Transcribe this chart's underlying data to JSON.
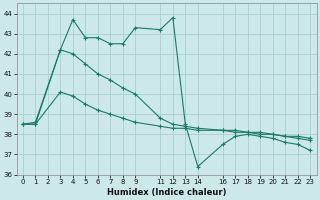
{
  "xlabel": "Humidex (Indice chaleur)",
  "bg_color": "#cce8e8",
  "grid_color": "#aad0d0",
  "line_color": "#1a7a6a",
  "xlim": [
    -0.5,
    23.5
  ],
  "ylim": [
    36,
    44.5
  ],
  "yticks": [
    36,
    37,
    38,
    39,
    40,
    41,
    42,
    43,
    44
  ],
  "xtick_positions": [
    0,
    1,
    2,
    3,
    4,
    5,
    6,
    7,
    8,
    9,
    11,
    12,
    13,
    14,
    16,
    17,
    18,
    19,
    20,
    21,
    22,
    23
  ],
  "xtick_labels": [
    "0",
    "1",
    "2",
    "3",
    "4",
    "5",
    "6",
    "7",
    "8",
    "9",
    "11",
    "12",
    "13",
    "14",
    "16",
    "17",
    "18",
    "19",
    "20",
    "21",
    "22",
    "23"
  ],
  "series1_x": [
    0,
    1,
    3,
    4,
    5,
    6,
    7,
    8,
    9,
    11,
    12,
    13,
    14,
    16,
    17,
    18,
    19,
    20,
    21,
    22,
    23
  ],
  "series1_y": [
    38.5,
    38.6,
    42.2,
    43.7,
    42.8,
    42.8,
    42.5,
    42.5,
    43.3,
    43.2,
    43.8,
    38.5,
    36.4,
    37.5,
    37.9,
    38.0,
    37.9,
    37.8,
    37.6,
    37.5,
    37.2
  ],
  "series2_x": [
    0,
    1,
    3,
    4,
    5,
    6,
    7,
    8,
    9,
    11,
    12,
    13,
    14,
    16,
    17,
    18,
    19,
    20,
    21,
    22,
    23
  ],
  "series2_y": [
    38.5,
    38.5,
    42.2,
    42.0,
    41.5,
    41.0,
    40.7,
    40.3,
    40.0,
    38.8,
    38.5,
    38.4,
    38.3,
    38.2,
    38.2,
    38.1,
    38.1,
    38.0,
    37.9,
    37.8,
    37.7
  ],
  "series3_x": [
    0,
    1,
    3,
    4,
    5,
    6,
    7,
    8,
    9,
    11,
    12,
    13,
    14,
    16,
    17,
    18,
    19,
    20,
    21,
    22,
    23
  ],
  "series3_y": [
    38.5,
    38.5,
    40.1,
    39.9,
    39.5,
    39.2,
    39.0,
    38.8,
    38.6,
    38.4,
    38.3,
    38.3,
    38.2,
    38.2,
    38.1,
    38.1,
    38.0,
    38.0,
    37.9,
    37.9,
    37.8
  ]
}
